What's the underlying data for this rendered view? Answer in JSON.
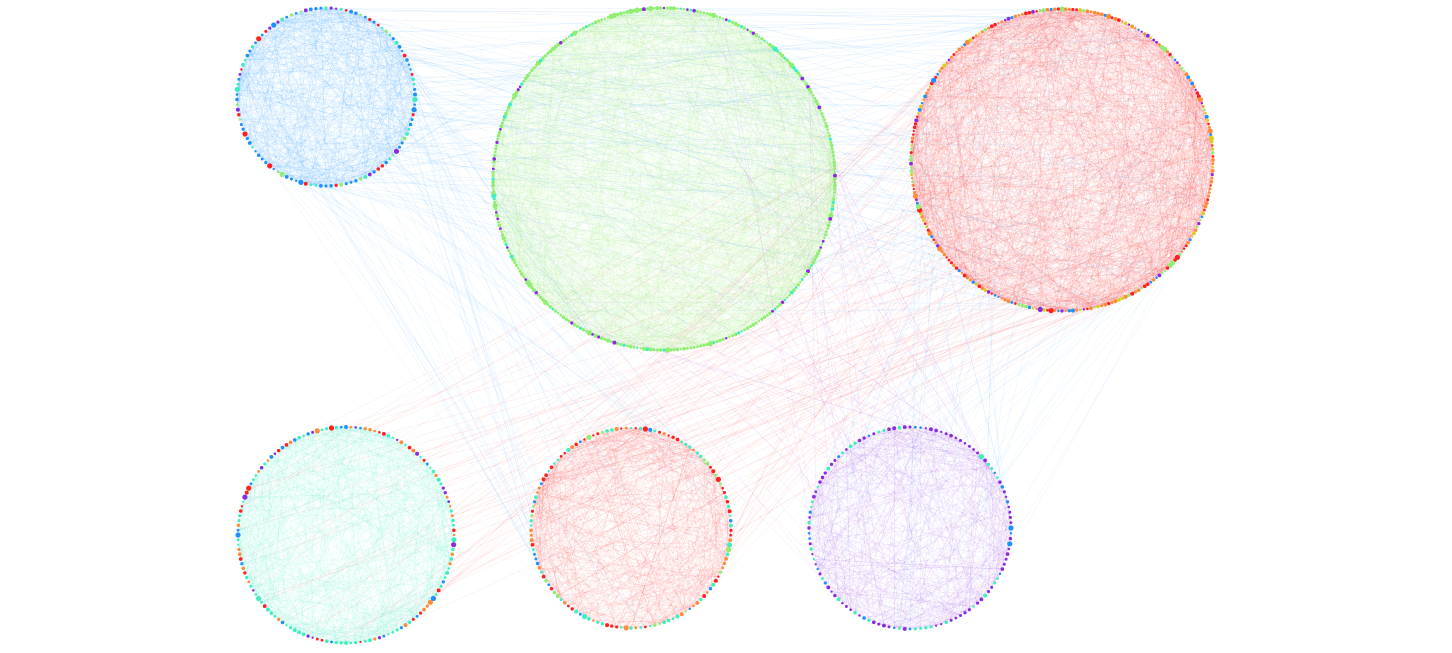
{
  "graph": {
    "colors": {
      "blue": "#1e90ff",
      "green": "#90ee70",
      "red": "#ff2020",
      "orange": "#ff8c3a",
      "teal": "#3ef0c0",
      "purple": "#8a2be2",
      "yellow": "#d8d020"
    },
    "clusters": [
      {
        "id": "top-left",
        "node_colors": [
          "blue",
          "blue",
          "blue",
          "red",
          "purple",
          "teal",
          "green"
        ],
        "edge_color": "blue"
      },
      {
        "id": "top-center",
        "node_colors": [
          "green",
          "green",
          "green",
          "green",
          "green",
          "green",
          "green",
          "purple",
          "teal"
        ],
        "edge_color": "green"
      },
      {
        "id": "top-right",
        "node_colors": [
          "red",
          "orange",
          "orange",
          "blue",
          "red",
          "orange",
          "purple",
          "green",
          "yellow"
        ],
        "edge_color": "red"
      },
      {
        "id": "bottom-left",
        "node_colors": [
          "teal",
          "teal",
          "teal",
          "blue",
          "red",
          "orange",
          "purple"
        ],
        "edge_color": "teal"
      },
      {
        "id": "bottom-center",
        "node_colors": [
          "teal",
          "teal",
          "red",
          "red",
          "orange",
          "blue",
          "green"
        ],
        "edge_color": "red"
      },
      {
        "id": "bottom-right",
        "node_colors": [
          "purple",
          "purple",
          "purple",
          "purple",
          "teal",
          "teal",
          "blue"
        ],
        "edge_color": "purple"
      }
    ],
    "inter_cluster_links": [
      {
        "from": "top-left",
        "to": "top-right",
        "color": "blue"
      },
      {
        "from": "top-left",
        "to": "top-center",
        "color": "blue"
      },
      {
        "from": "top-center",
        "to": "top-right",
        "color": "blue"
      },
      {
        "from": "top-right",
        "to": "bottom-center",
        "color": "red"
      },
      {
        "from": "top-right",
        "to": "bottom-left",
        "color": "red"
      },
      {
        "from": "top-left",
        "to": "bottom-center",
        "color": "blue"
      },
      {
        "from": "top-center",
        "to": "bottom-right",
        "color": "purple"
      },
      {
        "from": "top-right",
        "to": "bottom-right",
        "color": "blue"
      }
    ]
  }
}
